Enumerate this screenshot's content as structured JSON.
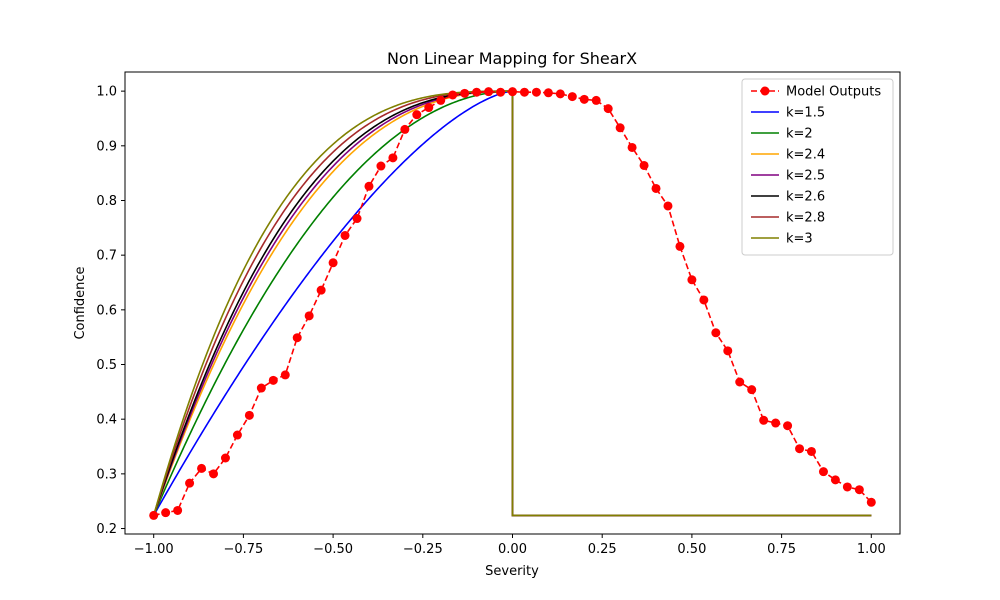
{
  "chart_data": {
    "type": "line",
    "title": "Non Linear Mapping for ShearX",
    "xlabel": "Severity",
    "ylabel": "Confidence",
    "xlim": [
      -1.08,
      1.08
    ],
    "ylim": [
      0.19,
      1.035
    ],
    "xticks": [
      -1.0,
      -0.75,
      -0.5,
      -0.25,
      0.0,
      0.25,
      0.5,
      0.75,
      1.0
    ],
    "xtick_labels": [
      "−1.00",
      "−0.75",
      "−0.50",
      "−0.25",
      "0.00",
      "0.25",
      "0.50",
      "0.75",
      "1.00"
    ],
    "yticks": [
      0.2,
      0.3,
      0.4,
      0.5,
      0.6,
      0.7,
      0.8,
      0.9,
      1.0
    ],
    "ytick_labels": [
      "0.2",
      "0.3",
      "0.4",
      "0.5",
      "0.6",
      "0.7",
      "0.8",
      "0.9",
      "1.0"
    ],
    "grid": false,
    "legend_position": "top-right",
    "model_outputs": {
      "name": "Model Outputs",
      "color": "#ff0000",
      "style": "dashed-with-markers",
      "x": [
        -1.0,
        -0.9667,
        -0.9333,
        -0.9,
        -0.8667,
        -0.8333,
        -0.8,
        -0.7667,
        -0.7333,
        -0.7,
        -0.6667,
        -0.6333,
        -0.6,
        -0.5667,
        -0.5333,
        -0.5,
        -0.4667,
        -0.4333,
        -0.4,
        -0.3667,
        -0.3333,
        -0.3,
        -0.2667,
        -0.2333,
        -0.2,
        -0.1667,
        -0.1333,
        -0.1,
        -0.0667,
        -0.0333,
        0.0,
        0.0333,
        0.0667,
        0.1,
        0.1333,
        0.1667,
        0.2,
        0.2333,
        0.2667,
        0.3,
        0.3333,
        0.3667,
        0.4,
        0.4333,
        0.4667,
        0.5,
        0.5333,
        0.5667,
        0.6,
        0.6333,
        0.6667,
        0.7,
        0.7333,
        0.7667,
        0.8,
        0.8333,
        0.8667,
        0.9,
        0.9333,
        0.9667,
        1.0
      ],
      "y": [
        0.224,
        0.229,
        0.233,
        0.283,
        0.31,
        0.3,
        0.329,
        0.371,
        0.407,
        0.457,
        0.471,
        0.481,
        0.549,
        0.589,
        0.636,
        0.686,
        0.736,
        0.767,
        0.826,
        0.863,
        0.878,
        0.93,
        0.957,
        0.97,
        0.983,
        0.993,
        0.996,
        0.998,
        0.999,
        0.998,
        0.999,
        0.998,
        0.998,
        0.997,
        0.995,
        0.99,
        0.985,
        0.983,
        0.968,
        0.933,
        0.897,
        0.864,
        0.822,
        0.79,
        0.716,
        0.655,
        0.618,
        0.558,
        0.525,
        0.468,
        0.454,
        0.398,
        0.393,
        0.388,
        0.346,
        0.341,
        0.304,
        0.289,
        0.276,
        0.271,
        0.248
      ]
    },
    "mapping_curves": {
      "y_min": 0.224,
      "y_max": 1.0,
      "x_start": -1.0,
      "x_end": 0.0,
      "drop_to": 0.224,
      "flat_end": 1.0
    },
    "series": [
      {
        "name": "k=1.5",
        "k": 1.5,
        "color": "#0000ff"
      },
      {
        "name": "k=2",
        "k": 2,
        "color": "#008000"
      },
      {
        "name": "k=2.4",
        "k": 2.4,
        "color": "#ffa500"
      },
      {
        "name": "k=2.5",
        "k": 2.5,
        "color": "#800080"
      },
      {
        "name": "k=2.6",
        "k": 2.6,
        "color": "#000000"
      },
      {
        "name": "k=2.8",
        "k": 2.8,
        "color": "#a52a2a"
      },
      {
        "name": "k=3",
        "k": 3,
        "color": "#808000"
      }
    ]
  }
}
